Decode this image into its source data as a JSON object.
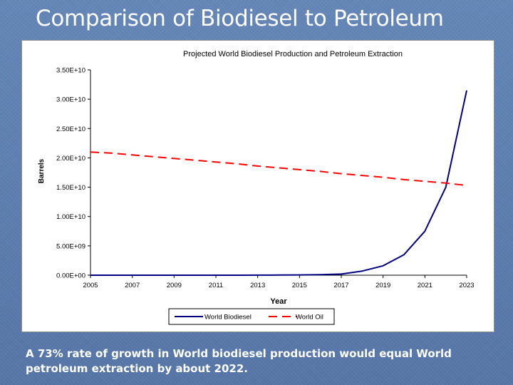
{
  "slide": {
    "title": "Comparison of Biodiesel to Petroleum",
    "caption": "A 73% rate of growth in World biodiesel production would equal World petroleum extraction by about 2022."
  },
  "chart_data": {
    "type": "line",
    "title": "Projected World Biodiesel Production and Petroleum Extraction",
    "xlabel": "Year",
    "ylabel": "Barrels",
    "xlim": [
      2005,
      2023
    ],
    "ylim": [
      0,
      35000000000
    ],
    "x_ticks": [
      "2005",
      "2007",
      "2009",
      "2011",
      "2013",
      "2015",
      "2017",
      "2019",
      "2021",
      "2023"
    ],
    "y_ticks": [
      "0.00E+00",
      "5.00E+09",
      "1.00E+10",
      "1.50E+10",
      "2.00E+10",
      "2.50E+10",
      "3.00E+10",
      "3.50E+10"
    ],
    "legend_position": "bottom",
    "grid": false,
    "x": [
      2005,
      2006,
      2007,
      2008,
      2009,
      2010,
      2011,
      2012,
      2013,
      2014,
      2015,
      2016,
      2017,
      2018,
      2019,
      2020,
      2021,
      2022,
      2023
    ],
    "series": [
      {
        "name": "World Biodiesel",
        "color": "#000080",
        "style": "solid",
        "values": [
          0,
          0,
          0,
          0,
          0,
          0,
          0,
          5000000,
          10000000,
          20000000,
          50000000,
          100000000,
          200000000,
          700000000,
          1600000000,
          3500000000,
          7500000000,
          15000000000,
          31500000000
        ]
      },
      {
        "name": "World Oil",
        "color": "#ff0000",
        "style": "dashed",
        "values": [
          21000000000,
          20800000000,
          20500000000,
          20200000000,
          19900000000,
          19600000000,
          19300000000,
          19000000000,
          18600000000,
          18300000000,
          18000000000,
          17700000000,
          17300000000,
          17000000000,
          16700000000,
          16300000000,
          16000000000,
          15700000000,
          15300000000
        ]
      }
    ]
  }
}
